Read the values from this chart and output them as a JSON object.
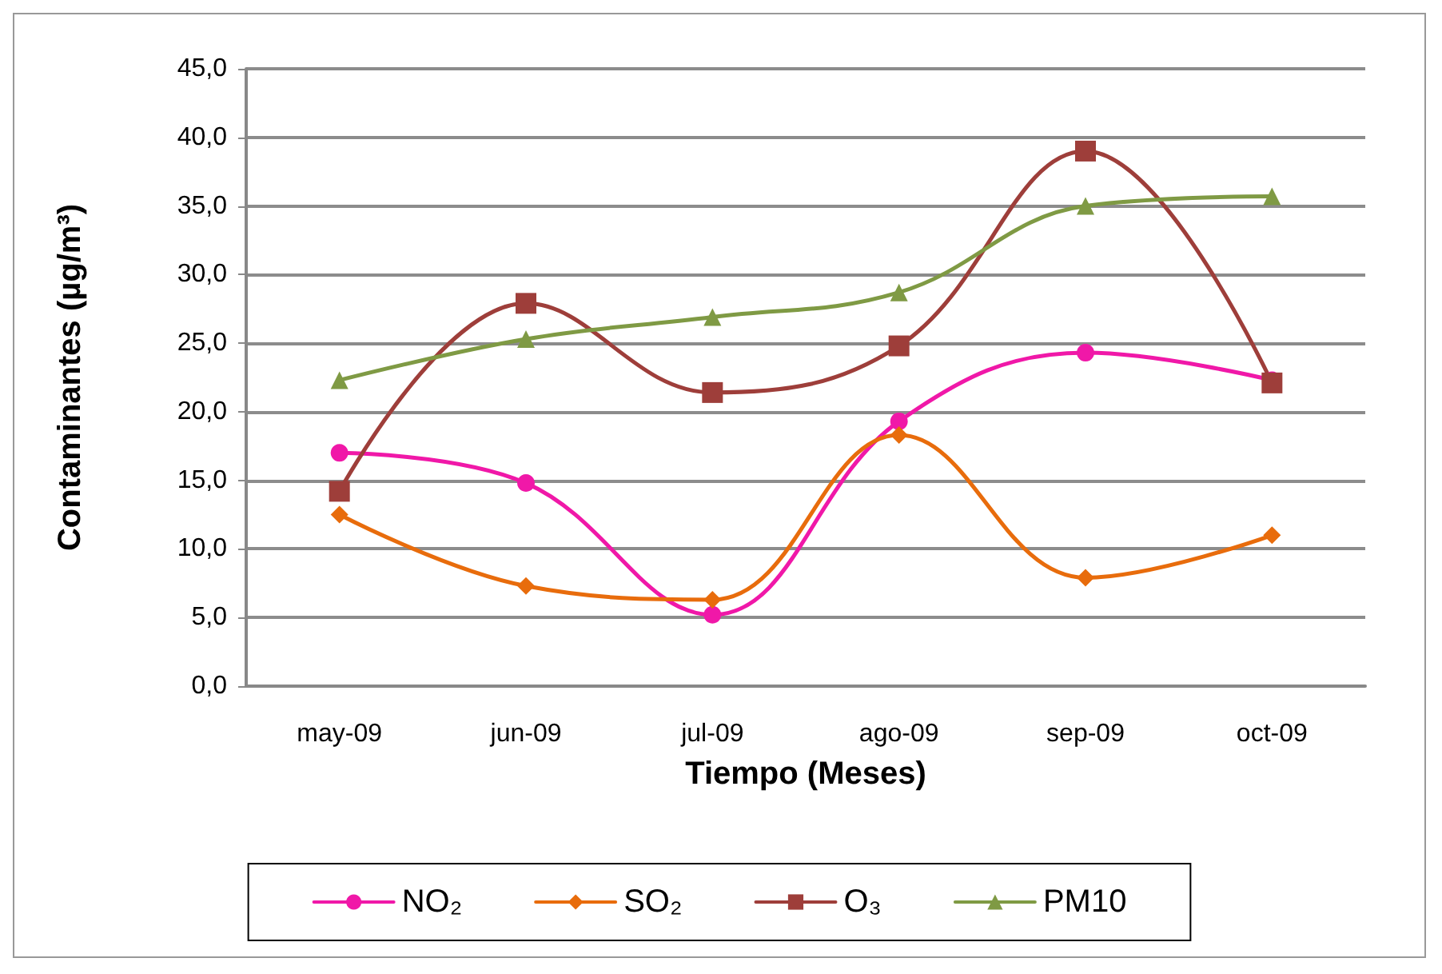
{
  "chart_data": {
    "type": "line",
    "xlabel": "Tiempo (Meses)",
    "ylabel": "Contaminantes (µg/m³)",
    "categories": [
      "may-09",
      "jun-09",
      "jul-09",
      "ago-09",
      "sep-09",
      "oct-09"
    ],
    "series": [
      {
        "name": "NO₂",
        "color": "#f018a8",
        "marker": "circle",
        "values": [
          17.0,
          14.8,
          5.2,
          19.3,
          24.3,
          22.3
        ]
      },
      {
        "name": "SO₂",
        "color": "#e86c0c",
        "marker": "diamond",
        "values": [
          12.5,
          7.3,
          6.3,
          18.3,
          7.9,
          11.0
        ]
      },
      {
        "name": "O₃",
        "color": "#9e3e3a",
        "marker": "square",
        "values": [
          14.2,
          27.9,
          21.4,
          24.8,
          39.0,
          22.1
        ]
      },
      {
        "name": "PM10",
        "color": "#7f9a44",
        "marker": "triangle",
        "values": [
          22.3,
          25.3,
          26.9,
          28.7,
          35.0,
          35.7
        ]
      }
    ],
    "ylim": [
      0,
      45
    ],
    "yticks": [
      {
        "value": 0,
        "label": "0,0"
      },
      {
        "value": 5,
        "label": "5,0"
      },
      {
        "value": 10,
        "label": "10,0"
      },
      {
        "value": 15,
        "label": "15,0"
      },
      {
        "value": 20,
        "label": "20,0"
      },
      {
        "value": 25,
        "label": "25,0"
      },
      {
        "value": 30,
        "label": "30,0"
      },
      {
        "value": 35,
        "label": "35,0"
      },
      {
        "value": 40,
        "label": "40,0"
      },
      {
        "value": 45,
        "label": "45,0"
      }
    ],
    "grid": "y",
    "legend": "bottom",
    "line_style": "solid"
  }
}
